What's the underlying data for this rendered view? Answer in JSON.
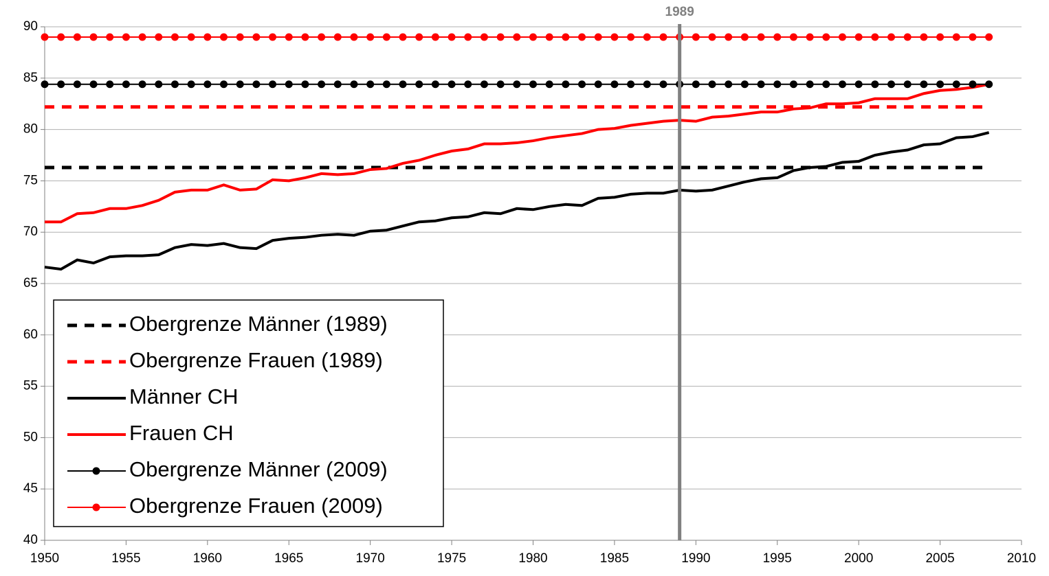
{
  "chart_data": {
    "type": "line",
    "x": [
      1950,
      1951,
      1952,
      1953,
      1954,
      1955,
      1956,
      1957,
      1958,
      1959,
      1960,
      1961,
      1962,
      1963,
      1964,
      1965,
      1966,
      1967,
      1968,
      1969,
      1970,
      1971,
      1972,
      1973,
      1974,
      1975,
      1976,
      1977,
      1978,
      1979,
      1980,
      1981,
      1982,
      1983,
      1984,
      1985,
      1986,
      1987,
      1988,
      1989,
      1990,
      1991,
      1992,
      1993,
      1994,
      1995,
      1996,
      1997,
      1998,
      1999,
      2000,
      2001,
      2002,
      2003,
      2004,
      2005,
      2006,
      2007,
      2008
    ],
    "series": [
      {
        "name": "Obergrenze Männer (1989)",
        "color": "#000000",
        "style": "dashed",
        "values": [
          76.3,
          76.3,
          76.3,
          76.3,
          76.3,
          76.3,
          76.3,
          76.3,
          76.3,
          76.3,
          76.3,
          76.3,
          76.3,
          76.3,
          76.3,
          76.3,
          76.3,
          76.3,
          76.3,
          76.3,
          76.3,
          76.3,
          76.3,
          76.3,
          76.3,
          76.3,
          76.3,
          76.3,
          76.3,
          76.3,
          76.3,
          76.3,
          76.3,
          76.3,
          76.3,
          76.3,
          76.3,
          76.3,
          76.3,
          76.3,
          76.3,
          76.3,
          76.3,
          76.3,
          76.3,
          76.3,
          76.3,
          76.3,
          76.3,
          76.3,
          76.3,
          76.3,
          76.3,
          76.3,
          76.3,
          76.3,
          76.3,
          76.3,
          76.3
        ]
      },
      {
        "name": "Obergrenze Frauen (1989)",
        "color": "#ff0000",
        "style": "dashed",
        "values": [
          82.2,
          82.2,
          82.2,
          82.2,
          82.2,
          82.2,
          82.2,
          82.2,
          82.2,
          82.2,
          82.2,
          82.2,
          82.2,
          82.2,
          82.2,
          82.2,
          82.2,
          82.2,
          82.2,
          82.2,
          82.2,
          82.2,
          82.2,
          82.2,
          82.2,
          82.2,
          82.2,
          82.2,
          82.2,
          82.2,
          82.2,
          82.2,
          82.2,
          82.2,
          82.2,
          82.2,
          82.2,
          82.2,
          82.2,
          82.2,
          82.2,
          82.2,
          82.2,
          82.2,
          82.2,
          82.2,
          82.2,
          82.2,
          82.2,
          82.2,
          82.2,
          82.2,
          82.2,
          82.2,
          82.2,
          82.2,
          82.2,
          82.2,
          82.2
        ]
      },
      {
        "name": "Männer CH",
        "color": "#000000",
        "style": "solid",
        "values": [
          66.6,
          66.4,
          67.3,
          67.0,
          67.6,
          67.7,
          67.7,
          67.8,
          68.5,
          68.8,
          68.7,
          68.9,
          68.5,
          68.4,
          69.2,
          69.4,
          69.5,
          69.7,
          69.8,
          69.7,
          70.1,
          70.2,
          70.6,
          71.0,
          71.1,
          71.4,
          71.5,
          71.9,
          71.8,
          72.3,
          72.2,
          72.5,
          72.7,
          72.6,
          73.3,
          73.4,
          73.7,
          73.8,
          73.8,
          74.1,
          74.0,
          74.1,
          74.5,
          74.9,
          75.2,
          75.3,
          76.0,
          76.3,
          76.4,
          76.8,
          76.9,
          77.5,
          77.8,
          78.0,
          78.5,
          78.6,
          79.2,
          79.3,
          79.7
        ]
      },
      {
        "name": "Frauen CH",
        "color": "#ff0000",
        "style": "solid",
        "values": [
          71.0,
          71.0,
          71.8,
          71.9,
          72.3,
          72.3,
          72.6,
          73.1,
          73.9,
          74.1,
          74.1,
          74.6,
          74.1,
          74.2,
          75.1,
          75.0,
          75.3,
          75.7,
          75.6,
          75.7,
          76.1,
          76.2,
          76.7,
          77.0,
          77.5,
          77.9,
          78.1,
          78.6,
          78.6,
          78.7,
          78.9,
          79.2,
          79.4,
          79.6,
          80.0,
          80.1,
          80.4,
          80.6,
          80.8,
          80.9,
          80.8,
          81.2,
          81.3,
          81.5,
          81.7,
          81.7,
          82.0,
          82.1,
          82.5,
          82.5,
          82.6,
          83.0,
          83.0,
          83.0,
          83.5,
          83.8,
          83.9,
          84.1,
          84.4
        ]
      },
      {
        "name": "Obergrenze Männer (2009)",
        "color": "#000000",
        "style": "markers",
        "values": [
          84.4,
          84.4,
          84.4,
          84.4,
          84.4,
          84.4,
          84.4,
          84.4,
          84.4,
          84.4,
          84.4,
          84.4,
          84.4,
          84.4,
          84.4,
          84.4,
          84.4,
          84.4,
          84.4,
          84.4,
          84.4,
          84.4,
          84.4,
          84.4,
          84.4,
          84.4,
          84.4,
          84.4,
          84.4,
          84.4,
          84.4,
          84.4,
          84.4,
          84.4,
          84.4,
          84.4,
          84.4,
          84.4,
          84.4,
          84.4,
          84.4,
          84.4,
          84.4,
          84.4,
          84.4,
          84.4,
          84.4,
          84.4,
          84.4,
          84.4,
          84.4,
          84.4,
          84.4,
          84.4,
          84.4,
          84.4,
          84.4,
          84.4,
          84.4
        ]
      },
      {
        "name": "Obergrenze Frauen (2009)",
        "color": "#ff0000",
        "style": "markers",
        "values": [
          89.0,
          89.0,
          89.0,
          89.0,
          89.0,
          89.0,
          89.0,
          89.0,
          89.0,
          89.0,
          89.0,
          89.0,
          89.0,
          89.0,
          89.0,
          89.0,
          89.0,
          89.0,
          89.0,
          89.0,
          89.0,
          89.0,
          89.0,
          89.0,
          89.0,
          89.0,
          89.0,
          89.0,
          89.0,
          89.0,
          89.0,
          89.0,
          89.0,
          89.0,
          89.0,
          89.0,
          89.0,
          89.0,
          89.0,
          89.0,
          89.0,
          89.0,
          89.0,
          89.0,
          89.0,
          89.0,
          89.0,
          89.0,
          89.0,
          89.0,
          89.0,
          89.0,
          89.0,
          89.0,
          89.0,
          89.0,
          89.0,
          89.0,
          89.0
        ]
      }
    ],
    "xlim": [
      1950,
      2010
    ],
    "xticks": [
      1950,
      1955,
      1960,
      1965,
      1970,
      1975,
      1980,
      1985,
      1990,
      1995,
      2000,
      2005,
      2010
    ],
    "ylim": [
      40,
      90
    ],
    "yticks": [
      40,
      45,
      50,
      55,
      60,
      65,
      70,
      75,
      80,
      85,
      90
    ],
    "grid": true,
    "legend": "lower left",
    "vline": 1989,
    "vline_color": "#808080"
  }
}
